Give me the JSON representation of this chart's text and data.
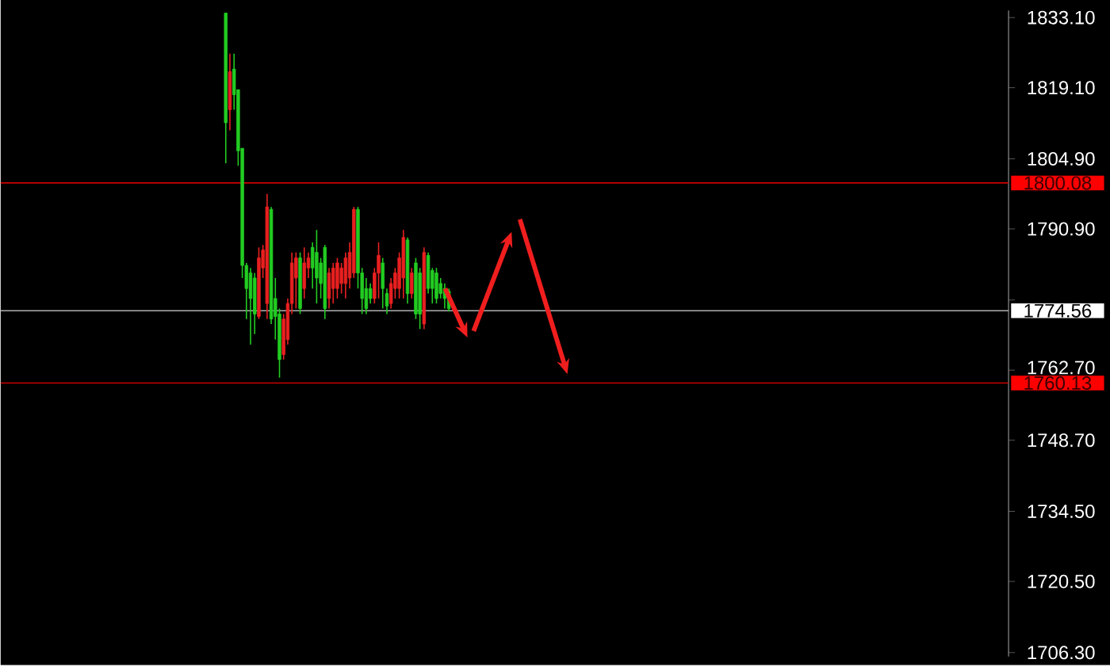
{
  "chart_data": {
    "type": "candlestick",
    "categories": [
      null,
      null,
      null,
      null,
      null,
      null,
      null,
      null,
      null,
      null,
      null,
      null,
      null,
      null,
      null,
      null,
      null,
      null,
      null,
      null,
      null,
      null,
      null,
      null,
      null,
      null,
      null,
      null,
      null,
      null,
      null,
      null,
      null,
      null,
      null,
      null,
      null,
      null,
      null,
      null,
      null,
      null,
      null,
      null,
      null,
      null,
      null,
      null,
      null,
      null,
      null,
      null,
      null,
      null,
      null,
      null,
      null,
      null,
      null,
      null,
      null,
      null,
      null,
      null,
      null,
      null,
      null,
      null,
      null,
      null,
      null,
      null,
      null,
      null,
      null,
      null,
      null,
      null,
      null,
      null,
      null,
      null,
      null,
      null,
      null,
      null,
      null,
      null,
      null,
      null,
      null,
      null,
      null,
      null,
      null,
      null,
      null,
      null,
      null,
      null,
      null,
      null,
      null,
      null,
      null,
      null,
      null,
      null,
      null,
      null,
      null,
      null,
      null,
      null,
      null,
      null,
      null,
      null,
      null,
      null,
      null,
      null,
      null,
      null,
      null,
      null,
      null,
      null,
      null,
      null,
      null,
      null,
      null,
      null,
      null,
      null,
      null,
      null,
      null,
      null,
      null,
      null,
      null,
      null,
      null,
      null,
      null,
      null,
      null,
      null,
      null,
      null,
      null,
      null,
      null,
      null,
      null,
      null,
      null,
      null,
      null,
      null,
      null,
      null,
      null,
      null,
      null,
      null,
      null,
      null,
      null,
      null,
      null,
      null,
      null,
      null,
      null,
      null,
      null,
      null,
      null,
      null,
      null,
      null,
      null,
      null,
      null,
      null,
      null,
      null,
      null,
      null,
      null,
      null,
      null,
      null,
      null,
      null,
      null,
      null,
      null,
      null,
      null,
      null,
      null,
      null,
      null,
      null,
      null,
      null,
      null,
      null,
      null,
      null,
      null,
      null,
      null,
      null,
      null,
      null,
      null,
      null,
      null,
      null,
      null,
      null,
      null,
      null,
      null,
      null,
      null,
      null,
      null,
      null,
      null,
      null,
      null,
      null,
      null,
      null,
      null,
      null,
      null,
      null
    ],
    "ohlc": [
      null,
      null,
      null,
      null,
      null,
      null,
      null,
      null,
      null,
      null,
      null,
      null,
      null,
      null,
      null,
      null,
      null,
      null,
      null,
      null,
      null,
      null,
      null,
      null,
      null,
      null,
      null,
      null,
      null,
      null,
      null,
      null,
      null,
      null,
      null,
      null,
      null,
      null,
      null,
      null,
      null,
      null,
      null,
      null,
      null,
      null,
      null,
      null,
      null,
      null,
      null,
      null,
      null,
      null,
      [
        1834.0,
        1834.0,
        1804.0,
        1812.1
      ],
      [
        1814.7,
        1825.9,
        1810.6,
        1822.3
      ],
      [
        1822.8,
        1825.9,
        1814.7,
        1817.7
      ],
      [
        1818.7,
        1818.7,
        1803.5,
        1806.5
      ],
      [
        1807.0,
        1807.0,
        1781.1,
        1783.6
      ],
      [
        1783.6,
        1784.1,
        1772.9,
        1779.0
      ],
      [
        1782.1,
        1783.1,
        1767.8,
        1777.0
      ],
      [
        1781.1,
        1782.1,
        1769.9,
        1773.9
      ],
      [
        1773.4,
        1787.2,
        1772.9,
        1785.1
      ],
      [
        1783.1,
        1787.7,
        1781.1,
        1786.7
      ],
      [
        1776.0,
        1797.9,
        1772.9,
        1795.3
      ],
      [
        1794.8,
        1795.3,
        1771.9,
        1772.9
      ],
      [
        1777.0,
        1781.1,
        1768.8,
        1773.4
      ],
      [
        1773.9,
        1775.0,
        1761.2,
        1764.8
      ],
      [
        1765.8,
        1773.9,
        1764.8,
        1772.9
      ],
      [
        1768.8,
        1777.0,
        1767.8,
        1776.0
      ],
      [
        1776.0,
        1786.2,
        1773.9,
        1784.1
      ],
      [
        1781.1,
        1786.2,
        1775.0,
        1785.1
      ],
      [
        1785.1,
        1786.2,
        1773.9,
        1775.0
      ],
      [
        1779.0,
        1787.2,
        1777.0,
        1784.1
      ],
      [
        1783.1,
        1786.2,
        1781.1,
        1785.1
      ],
      [
        1787.2,
        1788.2,
        1779.0,
        1783.1
      ],
      [
        1786.2,
        1790.7,
        1776.0,
        1781.1
      ],
      [
        1784.1,
        1785.1,
        1777.0,
        1780.0
      ],
      [
        1787.2,
        1787.7,
        1772.9,
        1775.0
      ],
      [
        1777.0,
        1783.1,
        1775.0,
        1782.1
      ],
      [
        1779.0,
        1784.1,
        1776.0,
        1783.1
      ],
      [
        1779.0,
        1785.1,
        1777.0,
        1784.1
      ],
      [
        1780.0,
        1784.1,
        1778.0,
        1783.1
      ],
      [
        1780.0,
        1786.2,
        1777.0,
        1785.1
      ],
      [
        1781.1,
        1788.2,
        1779.0,
        1786.2
      ],
      [
        1782.1,
        1795.3,
        1781.1,
        1794.8
      ],
      [
        1794.8,
        1795.3,
        1779.0,
        1782.1
      ],
      [
        1782.1,
        1783.1,
        1773.9,
        1777.0
      ],
      [
        1779.0,
        1781.1,
        1773.9,
        1775.0
      ],
      [
        1779.0,
        1780.0,
        1776.0,
        1777.0
      ],
      [
        1777.0,
        1783.1,
        1776.0,
        1782.1
      ],
      [
        1782.1,
        1788.2,
        1777.0,
        1785.6
      ],
      [
        1784.1,
        1785.1,
        1775.0,
        1779.0
      ],
      [
        1778.0,
        1779.0,
        1773.9,
        1775.5
      ],
      [
        1776.0,
        1781.1,
        1775.0,
        1780.0
      ],
      [
        1779.0,
        1783.1,
        1777.0,
        1782.1
      ],
      [
        1779.0,
        1786.2,
        1777.0,
        1785.1
      ],
      [
        1781.1,
        1790.7,
        1777.0,
        1789.2
      ],
      [
        1788.7,
        1789.2,
        1776.0,
        1778.0
      ],
      [
        1778.0,
        1783.1,
        1777.0,
        1782.1
      ],
      [
        1784.1,
        1785.1,
        1772.9,
        1773.9
      ],
      [
        1782.1,
        1783.1,
        1770.9,
        1773.9
      ],
      [
        1771.9,
        1787.2,
        1770.9,
        1786.2
      ],
      [
        1785.6,
        1786.2,
        1778.0,
        1779.0
      ],
      [
        1782.6,
        1783.1,
        1776.0,
        1779.0
      ],
      [
        1782.1,
        1783.1,
        1776.0,
        1777.0
      ],
      [
        1780.0,
        1781.1,
        1777.0,
        1778.0
      ],
      [
        1779.0,
        1780.0,
        1775.0,
        1777.0
      ],
      [
        1778.5,
        1779.0,
        1774.4,
        1775.0
      ],
      null,
      null,
      null,
      null,
      null,
      null,
      null,
      null,
      null,
      null,
      null,
      null,
      null,
      null,
      null,
      null,
      null,
      null,
      null,
      null,
      null,
      null,
      null,
      null,
      null,
      null,
      null,
      null,
      null,
      null,
      null,
      null,
      null,
      null,
      null,
      null,
      null,
      null,
      null,
      null,
      null,
      null,
      null,
      null,
      null,
      null,
      null,
      null,
      null,
      null,
      null,
      null,
      null,
      null,
      null,
      null,
      null,
      null,
      null,
      null,
      null,
      null,
      null,
      null,
      null,
      null,
      null,
      null,
      null,
      null,
      null,
      null,
      null,
      null,
      null,
      null,
      null,
      null,
      null,
      null,
      null,
      null,
      null,
      null,
      null,
      null,
      null,
      null,
      null,
      null,
      null,
      null,
      null,
      null,
      null,
      null,
      null,
      null,
      null,
      null,
      null,
      null,
      null,
      null,
      null,
      null,
      null,
      null,
      null,
      null,
      null,
      null,
      null,
      null,
      null,
      null,
      null,
      null,
      null,
      null,
      null,
      null,
      null,
      null,
      null,
      null,
      null,
      null,
      null,
      null,
      null,
      null,
      null,
      null,
      null
    ],
    "colors": [
      null,
      null,
      null,
      null,
      null,
      null,
      null,
      null,
      null,
      null,
      null,
      null,
      null,
      null,
      null,
      null,
      null,
      null,
      null,
      null,
      null,
      null,
      null,
      null,
      null,
      null,
      null,
      null,
      null,
      null,
      null,
      null,
      null,
      null,
      null,
      null,
      null,
      null,
      null,
      null,
      null,
      null,
      null,
      null,
      null,
      null,
      null,
      null,
      null,
      null,
      null,
      null,
      null,
      null,
      "#22cc22",
      "#e82020",
      "#22cc22",
      "#22cc22",
      "#22cc22",
      "#22cc22",
      "#22cc22",
      "#22cc22",
      "#e82020",
      "#e82020",
      "#e82020",
      "#22cc22",
      "#22cc22",
      "#22cc22",
      "#e82020",
      "#e82020",
      "#e82020",
      "#e82020",
      "#22cc22",
      "#e82020",
      "#e82020",
      "#22cc22",
      "#22cc22",
      "#22cc22",
      "#22cc22",
      "#e82020",
      "#e82020",
      "#e82020",
      "#e82020",
      "#e82020",
      "#e82020",
      "#e82020",
      "#22cc22",
      "#22cc22",
      "#22cc22",
      "#22cc22",
      "#e82020",
      "#e82020",
      "#22cc22",
      "#22cc22",
      "#e82020",
      "#e82020",
      "#e82020",
      "#e82020",
      "#22cc22",
      "#e82020",
      "#22cc22",
      "#22cc22",
      "#e82020",
      "#22cc22",
      "#22cc22",
      "#22cc22",
      "#22cc22",
      "#22cc22",
      "#22cc22",
      null,
      null,
      null,
      null,
      null,
      null,
      null,
      null,
      null,
      null,
      null,
      null,
      null,
      null,
      null,
      null,
      null,
      null,
      null,
      null,
      null,
      null,
      null,
      null,
      null,
      null,
      null,
      null,
      null,
      null,
      null,
      null,
      null,
      null,
      null,
      null,
      null,
      null,
      null,
      null,
      null,
      null,
      null,
      null,
      null,
      null,
      null,
      null,
      null,
      null,
      null,
      null,
      null,
      null,
      null,
      null,
      null,
      null,
      null,
      null,
      null,
      null,
      null,
      null,
      null,
      null,
      null,
      null,
      null,
      null,
      null,
      null,
      null,
      null,
      null,
      null,
      null,
      null,
      null,
      null,
      null,
      null,
      null,
      null,
      null,
      null,
      null,
      null,
      null,
      null,
      null,
      null,
      null,
      null,
      null,
      null,
      null,
      null,
      null,
      null,
      null,
      null,
      null,
      null,
      null,
      null,
      null,
      null,
      null,
      null,
      null,
      null,
      null,
      null,
      null,
      null,
      null,
      null,
      null,
      null,
      null,
      null,
      null,
      null,
      null,
      null,
      null,
      null,
      null,
      null,
      null,
      null,
      null,
      null,
      null
    ],
    "ylim": [
      1705.5,
      1834.5
    ],
    "yticks": [
      {
        "value": 1833.1,
        "label": "1833.10"
      },
      {
        "value": 1819.1,
        "label": "1819.10"
      },
      {
        "value": 1804.9,
        "label": "1804.90"
      },
      {
        "value": 1790.9,
        "label": "1790.90"
      },
      {
        "value": 1776.7,
        "label": null
      },
      {
        "value": 1762.7,
        "label": "1762.70"
      },
      {
        "value": 1748.7,
        "label": "1748.70"
      },
      {
        "value": 1734.5,
        "label": "1734.50"
      },
      {
        "value": 1720.5,
        "label": "1720.50"
      },
      {
        "value": 1706.3,
        "label": "1706.30"
      }
    ],
    "ref_lines": [
      {
        "axis": "y",
        "value": 1800.08,
        "label": "1800.08",
        "color": "#cc0000"
      },
      {
        "axis": "y",
        "value": 1774.56,
        "label": "1774.56",
        "color": "#b0b0b0"
      },
      {
        "axis": "y",
        "value": 1760.13,
        "label": "1760.13",
        "color": "#cc0000"
      }
    ],
    "grid": false
  }
}
